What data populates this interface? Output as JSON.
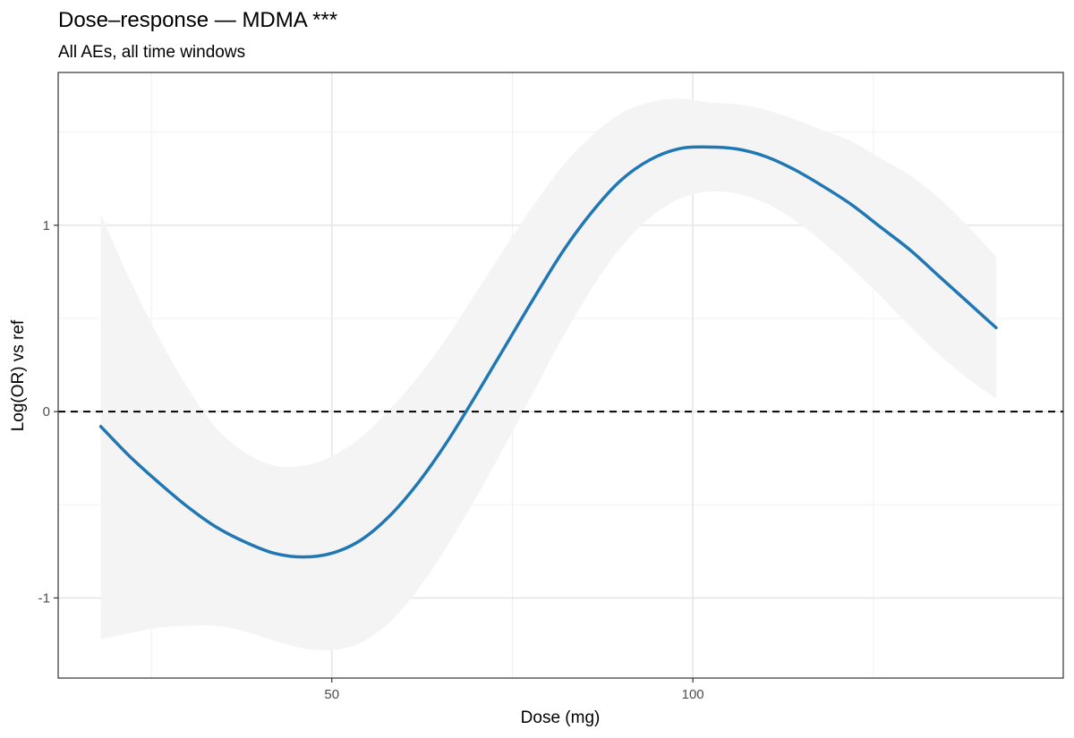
{
  "chart_data": {
    "type": "line",
    "title": "Dose–response — MDMA ***",
    "subtitle": "All AEs, all time windows",
    "xlabel": "Dose (mg)",
    "ylabel": "Log(OR) vs ref",
    "xlim": [
      12.1,
      151.3
    ],
    "ylim": [
      -1.43,
      1.82
    ],
    "x_ticks": [
      {
        "value": 50,
        "label": "50"
      },
      {
        "value": 100,
        "label": "100"
      }
    ],
    "y_ticks": [
      {
        "value": -1,
        "label": "-1"
      },
      {
        "value": 0,
        "label": "0"
      },
      {
        "value": 1,
        "label": "1"
      }
    ],
    "x_minor_gridlines": [
      25,
      75,
      125
    ],
    "y_minor_gridlines": [
      -0.5,
      0.5,
      1.5
    ],
    "grid": true,
    "reference_line": {
      "y": 0,
      "style": "dashed",
      "color": "#000000"
    },
    "series": [
      {
        "color": "#1f77b4",
        "x": [
          18,
          22,
          26,
          30,
          34,
          38,
          42,
          46,
          50,
          54,
          58,
          62,
          66,
          70,
          74,
          78,
          82,
          86,
          90,
          94,
          98,
          102,
          106,
          110,
          114,
          118,
          122,
          126,
          130,
          134,
          138,
          142
        ],
        "y": [
          -0.08,
          -0.24,
          -0.38,
          -0.51,
          -0.62,
          -0.7,
          -0.76,
          -0.78,
          -0.76,
          -0.69,
          -0.56,
          -0.38,
          -0.16,
          0.09,
          0.35,
          0.61,
          0.86,
          1.07,
          1.24,
          1.35,
          1.41,
          1.42,
          1.41,
          1.37,
          1.3,
          1.21,
          1.11,
          0.99,
          0.87,
          0.73,
          0.59,
          0.45
        ],
        "lower": [
          -1.22,
          -1.19,
          -1.16,
          -1.15,
          -1.15,
          -1.18,
          -1.23,
          -1.27,
          -1.28,
          -1.24,
          -1.13,
          -0.95,
          -0.72,
          -0.46,
          -0.18,
          0.11,
          0.4,
          0.66,
          0.88,
          1.04,
          1.14,
          1.18,
          1.17,
          1.12,
          1.03,
          0.91,
          0.77,
          0.62,
          0.46,
          0.31,
          0.18,
          0.07
        ],
        "upper": [
          1.06,
          0.71,
          0.4,
          0.13,
          -0.09,
          -0.22,
          -0.29,
          -0.29,
          -0.24,
          -0.14,
          0.01,
          0.19,
          0.4,
          0.64,
          0.88,
          1.11,
          1.32,
          1.48,
          1.6,
          1.66,
          1.68,
          1.66,
          1.65,
          1.62,
          1.57,
          1.51,
          1.45,
          1.36,
          1.27,
          1.15,
          1.0,
          0.83
        ],
        "ribbon_color": "#f4f4f4"
      }
    ]
  }
}
